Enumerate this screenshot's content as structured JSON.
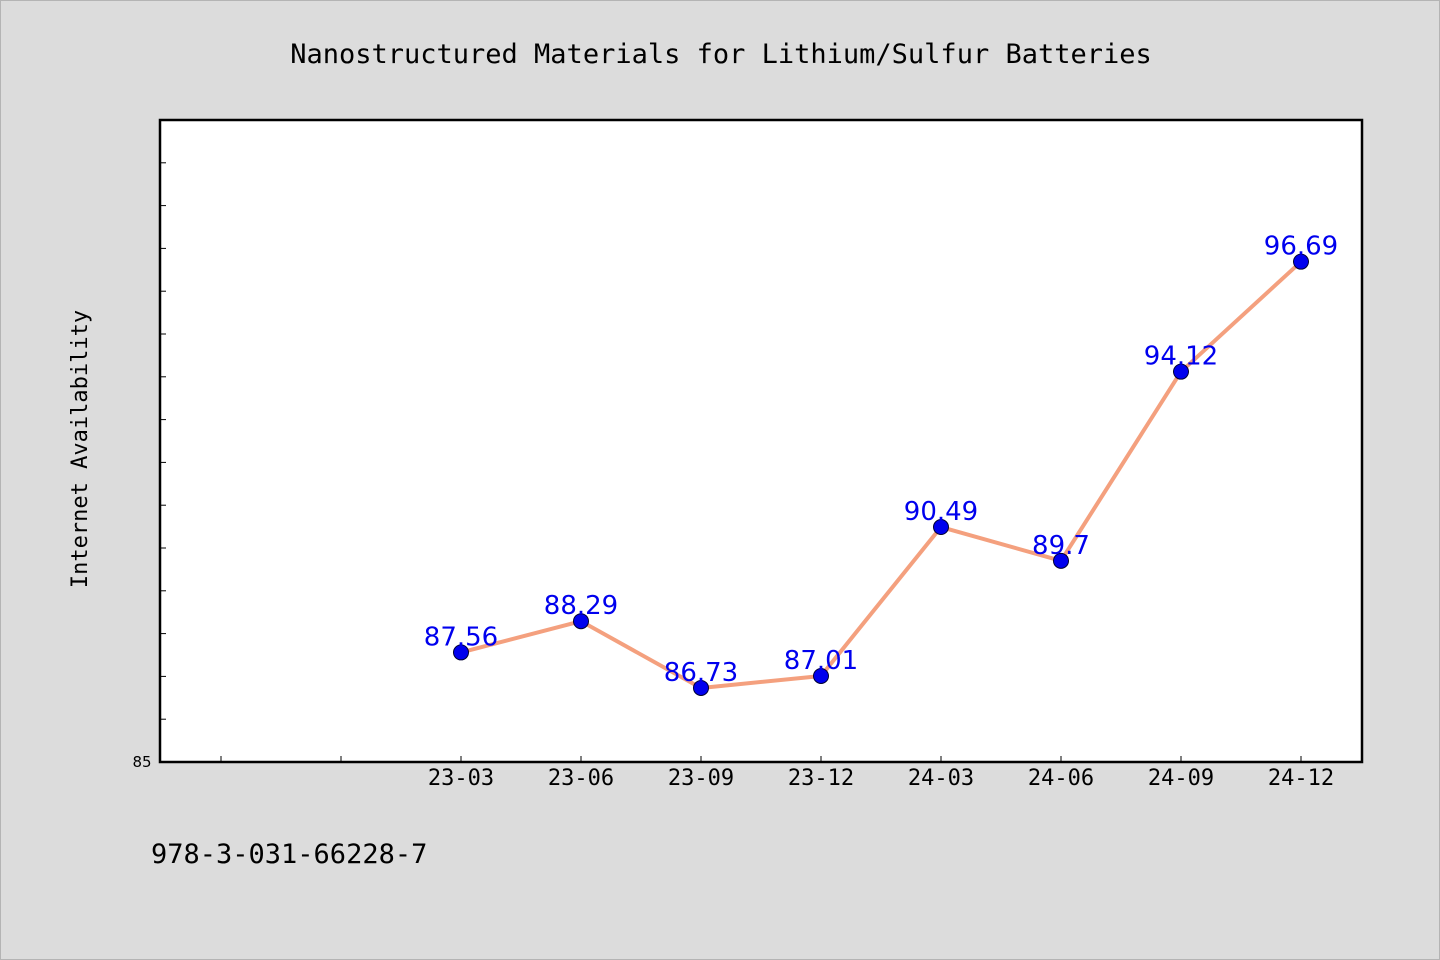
{
  "chart_data": {
    "type": "line",
    "title": "Nanostructured Materials for Lithium/Sulfur Batteries",
    "xlabel": "",
    "ylabel": "Internet Availability",
    "categories": [
      "23-03",
      "23-06",
      "23-09",
      "23-12",
      "24-03",
      "24-06",
      "24-09",
      "24-12"
    ],
    "values": [
      87.56,
      88.29,
      86.73,
      87.01,
      90.49,
      89.7,
      94.12,
      96.69
    ],
    "data_labels": [
      "87.56",
      "88.29",
      "86.73",
      "87.01",
      "90.49",
      "89.7",
      "94.12",
      "96.69"
    ],
    "ylim": [
      85,
      100
    ],
    "y_tick_labels": [
      "85"
    ],
    "grid": false,
    "line_color": "#f4a07e",
    "marker_color": "#0000ee",
    "label_color": "#0000ee"
  },
  "footer": {
    "isbn": "978-3-031-66228-7"
  }
}
